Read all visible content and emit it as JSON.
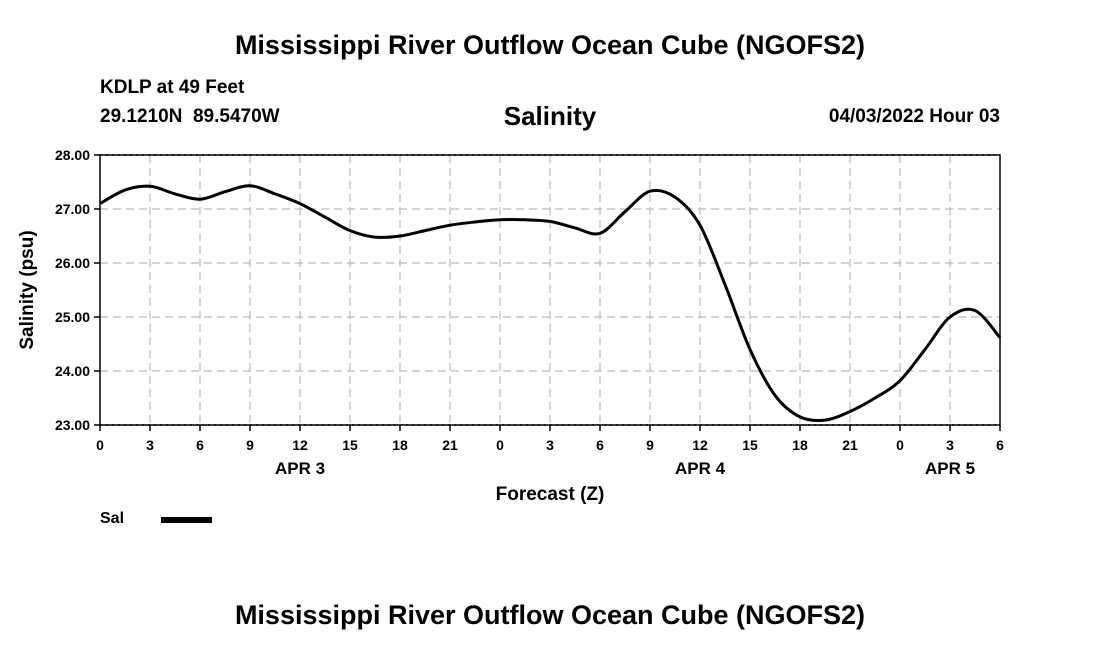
{
  "header": {
    "main_title": "Mississippi River Outflow Ocean Cube (NGOFS2)",
    "station": "KDLP at 49 Feet",
    "coords": "29.1210N  89.5470W",
    "timestamp": "04/03/2022 Hour 03",
    "footer_title": "Mississippi River Outflow Ocean Cube (NGOFS2)"
  },
  "colors": {
    "line": "#000000",
    "grid": "#bbbbbb",
    "axis": "#000000"
  },
  "chart_data": {
    "type": "line",
    "title": "Salinity",
    "xlabel": "Forecast (Z)",
    "ylabel": "Salinity (psu)",
    "xlim": [
      0,
      54
    ],
    "ylim": [
      23,
      28
    ],
    "grid": true,
    "y_ticks": [
      {
        "value": 28,
        "label": "28.00"
      },
      {
        "value": 27,
        "label": "27.00"
      },
      {
        "value": 26,
        "label": "26.00"
      },
      {
        "value": 25,
        "label": "25.00"
      },
      {
        "value": 24,
        "label": "24.00"
      },
      {
        "value": 23,
        "label": "23.00"
      }
    ],
    "x_ticks": [
      {
        "value": 0,
        "label": "0"
      },
      {
        "value": 3,
        "label": "3"
      },
      {
        "value": 6,
        "label": "6"
      },
      {
        "value": 9,
        "label": "9"
      },
      {
        "value": 12,
        "label": "12"
      },
      {
        "value": 15,
        "label": "15"
      },
      {
        "value": 18,
        "label": "18"
      },
      {
        "value": 21,
        "label": "21"
      },
      {
        "value": 24,
        "label": "0"
      },
      {
        "value": 27,
        "label": "3"
      },
      {
        "value": 30,
        "label": "6"
      },
      {
        "value": 33,
        "label": "9"
      },
      {
        "value": 36,
        "label": "12"
      },
      {
        "value": 39,
        "label": "15"
      },
      {
        "value": 42,
        "label": "18"
      },
      {
        "value": 45,
        "label": "21"
      },
      {
        "value": 48,
        "label": "0"
      },
      {
        "value": 51,
        "label": "3"
      },
      {
        "value": 54,
        "label": "6"
      }
    ],
    "day_labels": [
      {
        "value": 12,
        "label": "APR 3"
      },
      {
        "value": 36,
        "label": "APR 4"
      },
      {
        "value": 51,
        "label": "APR 5"
      }
    ],
    "legend": {
      "position": "bottom-left"
    },
    "series": [
      {
        "name": "Sal",
        "x": [
          0,
          1.5,
          3,
          4.5,
          6,
          7.5,
          9,
          10.5,
          12,
          13.5,
          15,
          16.5,
          18,
          19.5,
          21,
          22.5,
          24,
          25.5,
          27,
          28.5,
          30,
          31.5,
          33,
          34.5,
          36,
          37.5,
          39,
          40.5,
          42,
          43.5,
          45,
          46.5,
          48,
          49.5,
          51,
          52.5,
          54
        ],
        "values": [
          27.1,
          27.35,
          27.42,
          27.28,
          27.18,
          27.32,
          27.43,
          27.28,
          27.1,
          26.85,
          26.6,
          26.48,
          26.5,
          26.6,
          26.7,
          26.76,
          26.8,
          26.8,
          26.77,
          26.65,
          26.55,
          26.95,
          27.33,
          27.22,
          26.7,
          25.6,
          24.4,
          23.55,
          23.15,
          23.09,
          23.25,
          23.5,
          23.82,
          24.4,
          25.0,
          25.12,
          24.62
        ]
      }
    ]
  }
}
